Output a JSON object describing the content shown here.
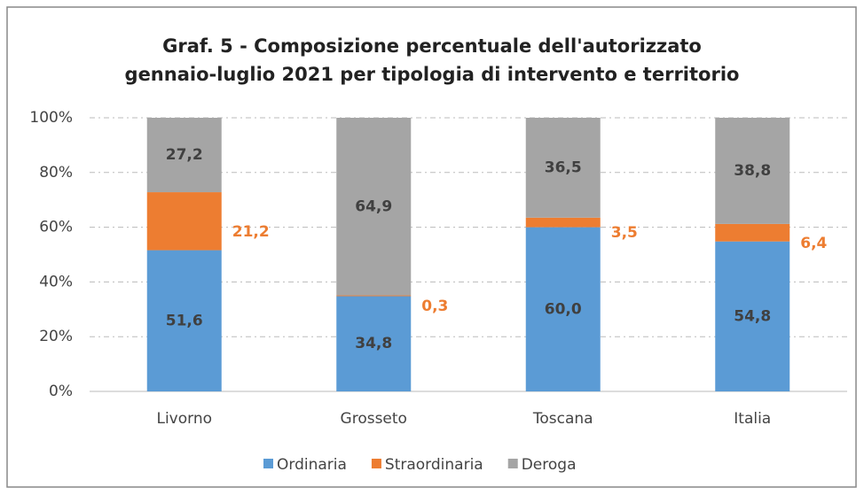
{
  "chart_data": {
    "type": "stacked_bar",
    "title": "Graf. 5 - Composizione percentuale dell'autorizzato gennaio-luglio 2021 per tipologia di intervento e territorio",
    "categories": [
      "Livorno",
      "Grosseto",
      "Toscana",
      "Italia"
    ],
    "series": [
      {
        "name": "Ordinaria",
        "color": "#5b9bd5",
        "values": [
          51.6,
          34.8,
          60.0,
          54.8
        ],
        "value_labels": [
          "51,6",
          "34,8",
          "60,0",
          "54,8"
        ]
      },
      {
        "name": "Straordinaria",
        "color": "#ed7d31",
        "values": [
          21.2,
          0.3,
          3.5,
          6.4
        ],
        "value_labels": [
          "21,2",
          "0,3",
          "3,5",
          "6,4"
        ]
      },
      {
        "name": "Deroga",
        "color": "#a5a5a5",
        "values": [
          27.2,
          64.9,
          36.5,
          38.8
        ],
        "value_labels": [
          "27,2",
          "64,9",
          "36,5",
          "38,8"
        ]
      }
    ],
    "ylim": [
      0,
      100
    ],
    "yticks": [
      {
        "value": 0,
        "label": "0%"
      },
      {
        "value": 20,
        "label": "20%"
      },
      {
        "value": 40,
        "label": "40%"
      },
      {
        "value": 60,
        "label": "60%"
      },
      {
        "value": 80,
        "label": "80%"
      },
      {
        "value": 100,
        "label": "100%"
      }
    ],
    "grid": true,
    "legend": "bottom"
  }
}
